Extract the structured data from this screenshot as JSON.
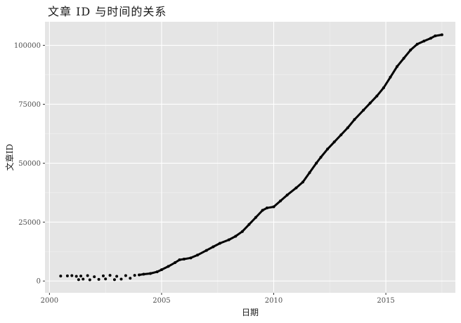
{
  "chart_data": {
    "type": "scatter",
    "title": "文章 ID 与时间的关系",
    "xlabel": "日期",
    "ylabel": "文章ID",
    "xlim": [
      1999.8,
      2018.1
    ],
    "ylim": [
      -5000,
      110000
    ],
    "xticks": [
      2000,
      2005,
      2010,
      2015
    ],
    "xtick_labels": [
      "2000",
      "2005",
      "2010",
      "2015"
    ],
    "yticks": [
      0,
      25000,
      50000,
      75000,
      100000
    ],
    "ytick_labels": [
      "0",
      "25000",
      "50000",
      "75000",
      "100000"
    ],
    "grid": true,
    "background_color": "#e5e5e5",
    "point_color": "#000000",
    "series": [
      {
        "x": [
          2000.5,
          2000.8,
          2001.0,
          2001.2,
          2001.3,
          2001.4,
          2001.5,
          2001.7,
          2001.8,
          2002.0,
          2002.2,
          2002.4,
          2002.5,
          2002.7,
          2002.9,
          2003.0,
          2003.2,
          2003.4,
          2003.6,
          2003.8,
          2004.0,
          2004.2,
          2004.5,
          2004.8,
          2005.0,
          2005.3,
          2005.6,
          2005.8,
          2006.0,
          2006.3,
          2006.6,
          2007.0,
          2007.3,
          2007.6,
          2008.0,
          2008.3,
          2008.6,
          2008.9,
          2009.2,
          2009.5,
          2009.7,
          2010.0,
          2010.3,
          2010.6,
          2011.0,
          2011.3,
          2011.6,
          2011.9,
          2012.1,
          2012.4,
          2012.7,
          2013.0,
          2013.3,
          2013.6,
          2014.0,
          2014.3,
          2014.6,
          2014.9,
          2015.2,
          2015.5,
          2015.8,
          2016.1,
          2016.4,
          2016.7,
          2017.0,
          2017.2,
          2017.5
        ],
        "y": [
          2100,
          2200,
          2300,
          2000,
          600,
          2100,
          800,
          2300,
          500,
          1800,
          700,
          2200,
          900,
          2400,
          600,
          2000,
          800,
          2300,
          1200,
          2400,
          2600,
          2900,
          3200,
          3900,
          4800,
          6200,
          7800,
          9000,
          9300,
          9800,
          11000,
          13000,
          14500,
          16000,
          17500,
          19000,
          21000,
          24000,
          27000,
          30000,
          31000,
          31500,
          34000,
          36500,
          39500,
          42000,
          46000,
          50000,
          52500,
          56000,
          59000,
          62000,
          65000,
          68500,
          72500,
          75500,
          78500,
          82000,
          86500,
          91000,
          94500,
          98000,
          100500,
          101800,
          103000,
          104000,
          104500
        ]
      }
    ]
  }
}
